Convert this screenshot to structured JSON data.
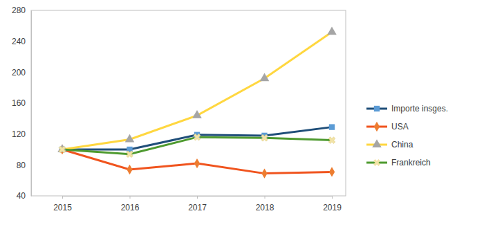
{
  "chart_data": {
    "type": "line",
    "categories": [
      "2015",
      "2016",
      "2017",
      "2018",
      "2019"
    ],
    "series": [
      {
        "name": "Importe insges.",
        "color": "#1f4e79",
        "marker": "square",
        "values": [
          100,
          100,
          119,
          118,
          129
        ]
      },
      {
        "name": "USA",
        "color": "#f0541e",
        "marker": "diamond",
        "values": [
          100,
          74,
          82,
          69,
          71
        ]
      },
      {
        "name": "China",
        "color": "#ffd740",
        "marker": "triangle",
        "values": [
          100,
          113,
          144,
          192,
          252
        ]
      },
      {
        "name": "Frankreich",
        "color": "#4e9a2f",
        "marker": "x",
        "values": [
          100,
          94,
          116,
          115,
          112
        ]
      }
    ],
    "ylim": [
      40,
      280
    ],
    "yticks": [
      40,
      80,
      120,
      160,
      200,
      240,
      280
    ],
    "grid": false,
    "legend": "right"
  }
}
